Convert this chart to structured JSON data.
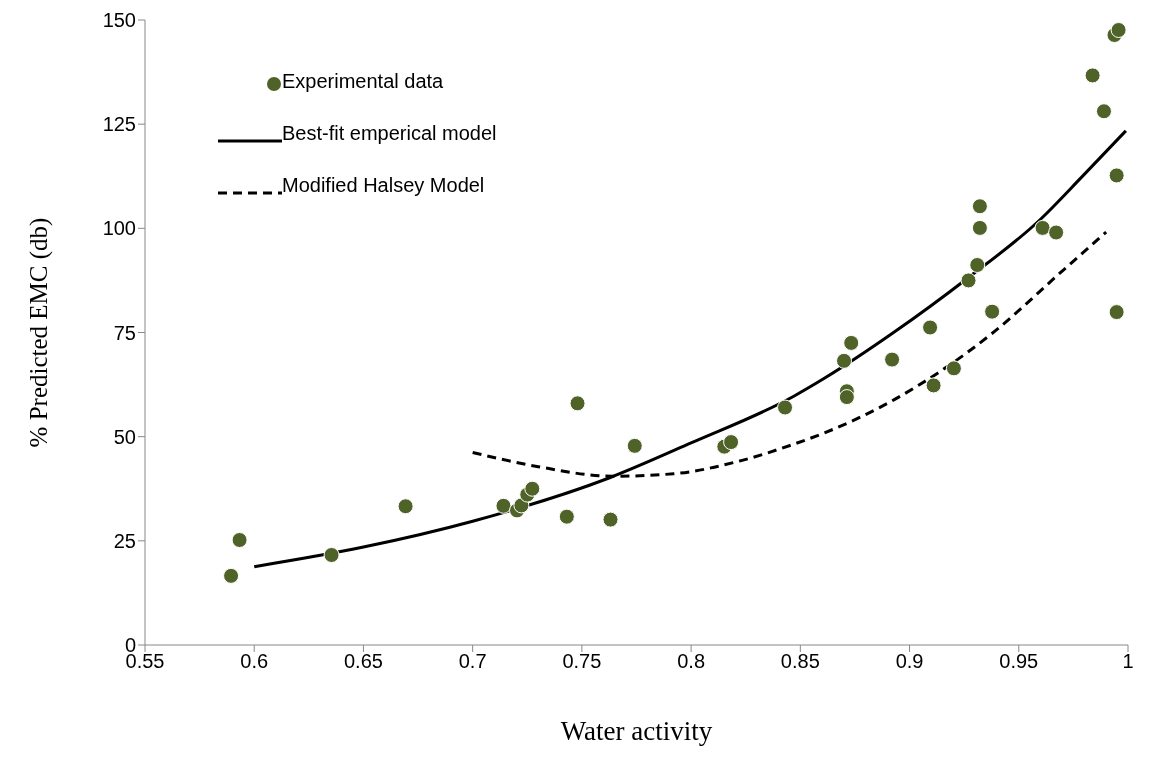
{
  "chart_data": {
    "type": "scatter",
    "xlabel": "Water activity",
    "ylabel": "% Predicted EMC (db)",
    "xlim": [
      0.55,
      1
    ],
    "xticks": [
      0.55,
      0.6,
      0.65,
      0.7,
      0.75,
      0.8,
      0.85,
      0.9,
      0.95,
      1
    ],
    "ylim": [
      0,
      150
    ],
    "yticks": [
      0,
      25,
      50,
      75,
      100,
      125,
      150
    ],
    "legend": "top left",
    "grid": false,
    "series": [
      {
        "name": "Experimental data",
        "marker": "circle",
        "color": "#4f6228",
        "x": [
          0.5894,
          0.5933,
          0.6354,
          0.6693,
          0.7141,
          0.7203,
          0.7223,
          0.725,
          0.7273,
          0.7431,
          0.748,
          0.7631,
          0.7742,
          0.8152,
          0.8183,
          0.843,
          0.87,
          0.8733,
          0.8713,
          0.8713,
          0.892,
          0.9094,
          0.911,
          0.9203,
          0.927,
          0.931,
          0.9322,
          0.9322,
          0.9378,
          0.9609,
          0.9671,
          0.9948,
          0.9838,
          0.989,
          0.9948,
          0.9938,
          0.9957
        ],
        "values": [
          16.6,
          25.2,
          21.6,
          33.3,
          33.4,
          32.3,
          33.5,
          36.1,
          37.5,
          30.8,
          58.0,
          30.1,
          47.8,
          47.6,
          48.7,
          57.0,
          68.2,
          72.5,
          60.9,
          59.5,
          68.5,
          76.2,
          62.3,
          66.4,
          87.5,
          91.2,
          100.1,
          105.3,
          80.0,
          100.1,
          99.0,
          79.9,
          136.7,
          128.1,
          112.7,
          146.4,
          147.6
        ]
      },
      {
        "name": "Best-fit emperical model",
        "type": "line",
        "marker": "none",
        "line_style": "solid",
        "color": "#000000",
        "x": [
          0.6,
          0.65,
          0.7,
          0.763,
          0.8,
          0.847,
          0.861,
          0.893,
          0.927,
          0.959,
          0.979,
          0.999
        ],
        "values": [
          18.8,
          23.5,
          29.7,
          40.2,
          48.5,
          59.7,
          64.0,
          75.1,
          88.2,
          101.7,
          112.4,
          123.4
        ]
      },
      {
        "name": "Modified Halsey Model",
        "type": "line",
        "marker": "none",
        "line_style": "dashed",
        "color": "#000000",
        "x": [
          0.7,
          0.73,
          0.764,
          0.792,
          0.8225,
          0.847,
          0.861,
          0.893,
          0.9376,
          0.97,
          0.99
        ],
        "values": [
          46.2,
          42.8,
          40.5,
          41.1,
          44.2,
          48.2,
          50.9,
          58.9,
          74.7,
          89.8,
          99.1
        ]
      }
    ]
  }
}
